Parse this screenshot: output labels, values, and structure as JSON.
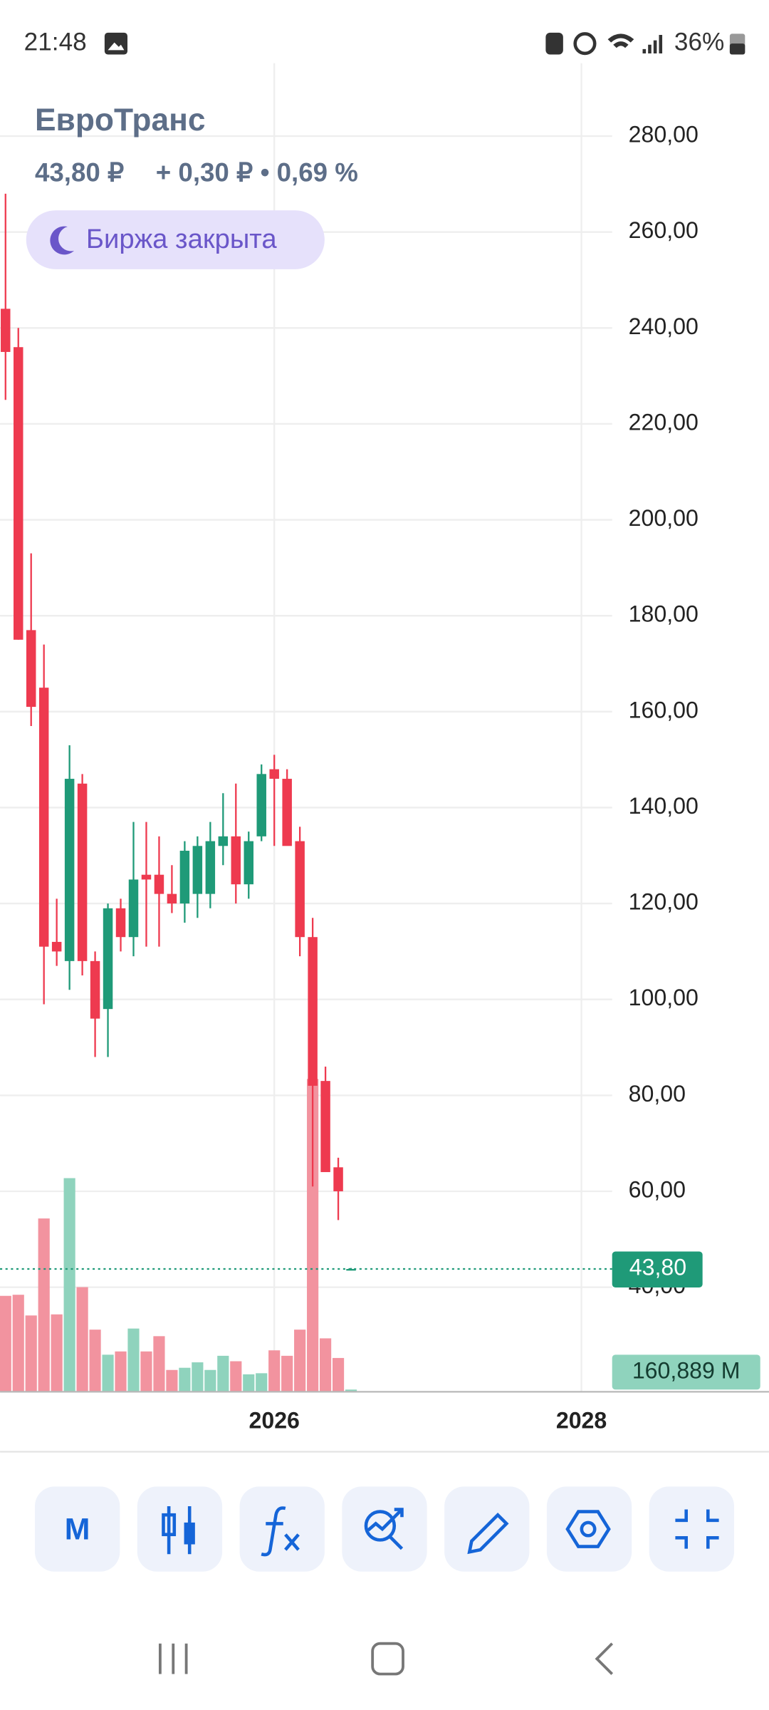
{
  "status_bar": {
    "time": "21:48",
    "battery": "36%"
  },
  "header": {
    "title": "ЕвроТранс",
    "price": "43,80 ₽",
    "change": "+ 0,30 ₽ • 0,69 %",
    "market_status": "Биржа закрыта"
  },
  "chart_data": {
    "type": "candlestick",
    "categories": [
      null,
      null,
      null,
      null,
      null,
      null,
      null,
      null,
      null,
      null,
      null,
      null,
      null,
      null,
      null,
      null,
      null,
      null,
      null,
      null,
      null,
      null,
      null,
      null,
      null,
      null,
      null,
      null
    ],
    "open": [
      244,
      236,
      177,
      165,
      112,
      108,
      145,
      108,
      98,
      119,
      113,
      126,
      126,
      122,
      120,
      122,
      122,
      132,
      134,
      124,
      134,
      148,
      146,
      133,
      113,
      83,
      65,
      43.5
    ],
    "high": [
      268,
      240,
      193,
      174,
      121,
      153,
      147,
      110,
      120,
      121,
      137,
      137,
      134,
      128,
      133,
      134,
      137,
      143,
      145,
      135,
      149,
      151,
      148,
      136,
      117,
      86,
      67,
      44
    ],
    "low": [
      225,
      175,
      157,
      99,
      107,
      102,
      105,
      88,
      88,
      110,
      109,
      111,
      111,
      118,
      116,
      117,
      119,
      128,
      120,
      121,
      133,
      132,
      133,
      109,
      61,
      64,
      54,
      43.5
    ],
    "close": [
      235,
      175,
      161,
      111,
      110,
      146,
      108,
      96,
      119,
      113,
      125,
      125,
      122,
      120,
      131,
      132,
      133,
      134,
      124,
      133,
      147,
      146,
      132,
      113,
      82,
      64,
      60,
      43.8
    ],
    "volume": [
      7040,
      7120,
      5600,
      12720,
      5680,
      15680,
      7680,
      4560,
      2720,
      2960,
      4640,
      2960,
      4080,
      1600,
      1760,
      2160,
      1600,
      2640,
      2240,
      1280,
      1360,
      3040,
      2640,
      4560,
      22960,
      3920,
      2480,
      160.889
    ],
    "up_color": "#1f9a78",
    "down_color": "#ee3a4f",
    "volume_up_color": "#8fd3bd",
    "volume_down_color": "#f2939f",
    "xlim": [
      -0.43,
      47.4
    ],
    "xticks": [
      {
        "value": 21,
        "label": "2026"
      },
      {
        "value": 45,
        "label": "2028"
      }
    ],
    "ylim": [
      18.2,
      295.2
    ],
    "yticks": [
      {
        "value": 40,
        "label": "40,00"
      },
      {
        "value": 60,
        "label": "60,00"
      },
      {
        "value": 80,
        "label": "80,00"
      },
      {
        "value": 100,
        "label": "100,00"
      },
      {
        "value": 120,
        "label": "120,00"
      },
      {
        "value": 140,
        "label": "140,00"
      },
      {
        "value": 160,
        "label": "160,00"
      },
      {
        "value": 180,
        "label": "180,00"
      },
      {
        "value": 200,
        "label": "200,00"
      },
      {
        "value": 220,
        "label": "220,00"
      },
      {
        "value": 240,
        "label": "240,00"
      },
      {
        "value": 260,
        "label": "260,00"
      },
      {
        "value": 280,
        "label": "280,00"
      }
    ],
    "volume_ylim": [
      0,
      24000
    ],
    "last_price": {
      "value": 43.8,
      "label": "43,80"
    },
    "last_volume": {
      "value": 160.889,
      "label": "160,889 M"
    },
    "grid": true
  },
  "toolbar": {
    "period": "M"
  }
}
